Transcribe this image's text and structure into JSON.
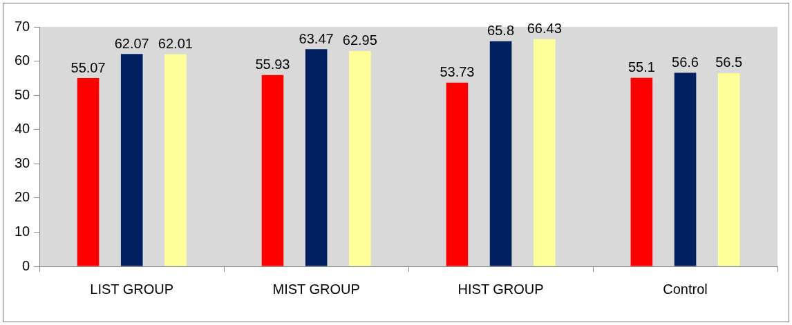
{
  "chart_data": {
    "type": "bar",
    "categories": [
      "LIST GROUP",
      "MIST GROUP",
      "HIST GROUP",
      "Control"
    ],
    "series": [
      {
        "color": "#ff0000",
        "values": [
          55.07,
          55.93,
          53.73,
          55.1
        ]
      },
      {
        "color": "#002060",
        "values": [
          62.07,
          63.47,
          65.8,
          56.6
        ]
      },
      {
        "color": "#ffff99",
        "values": [
          62.01,
          62.95,
          66.43,
          56.5
        ]
      }
    ],
    "ylim": [
      0,
      70
    ],
    "yticks": [
      0,
      10,
      20,
      30,
      40,
      50,
      60,
      70
    ],
    "grid": false,
    "legend": false,
    "data_labels": true
  }
}
